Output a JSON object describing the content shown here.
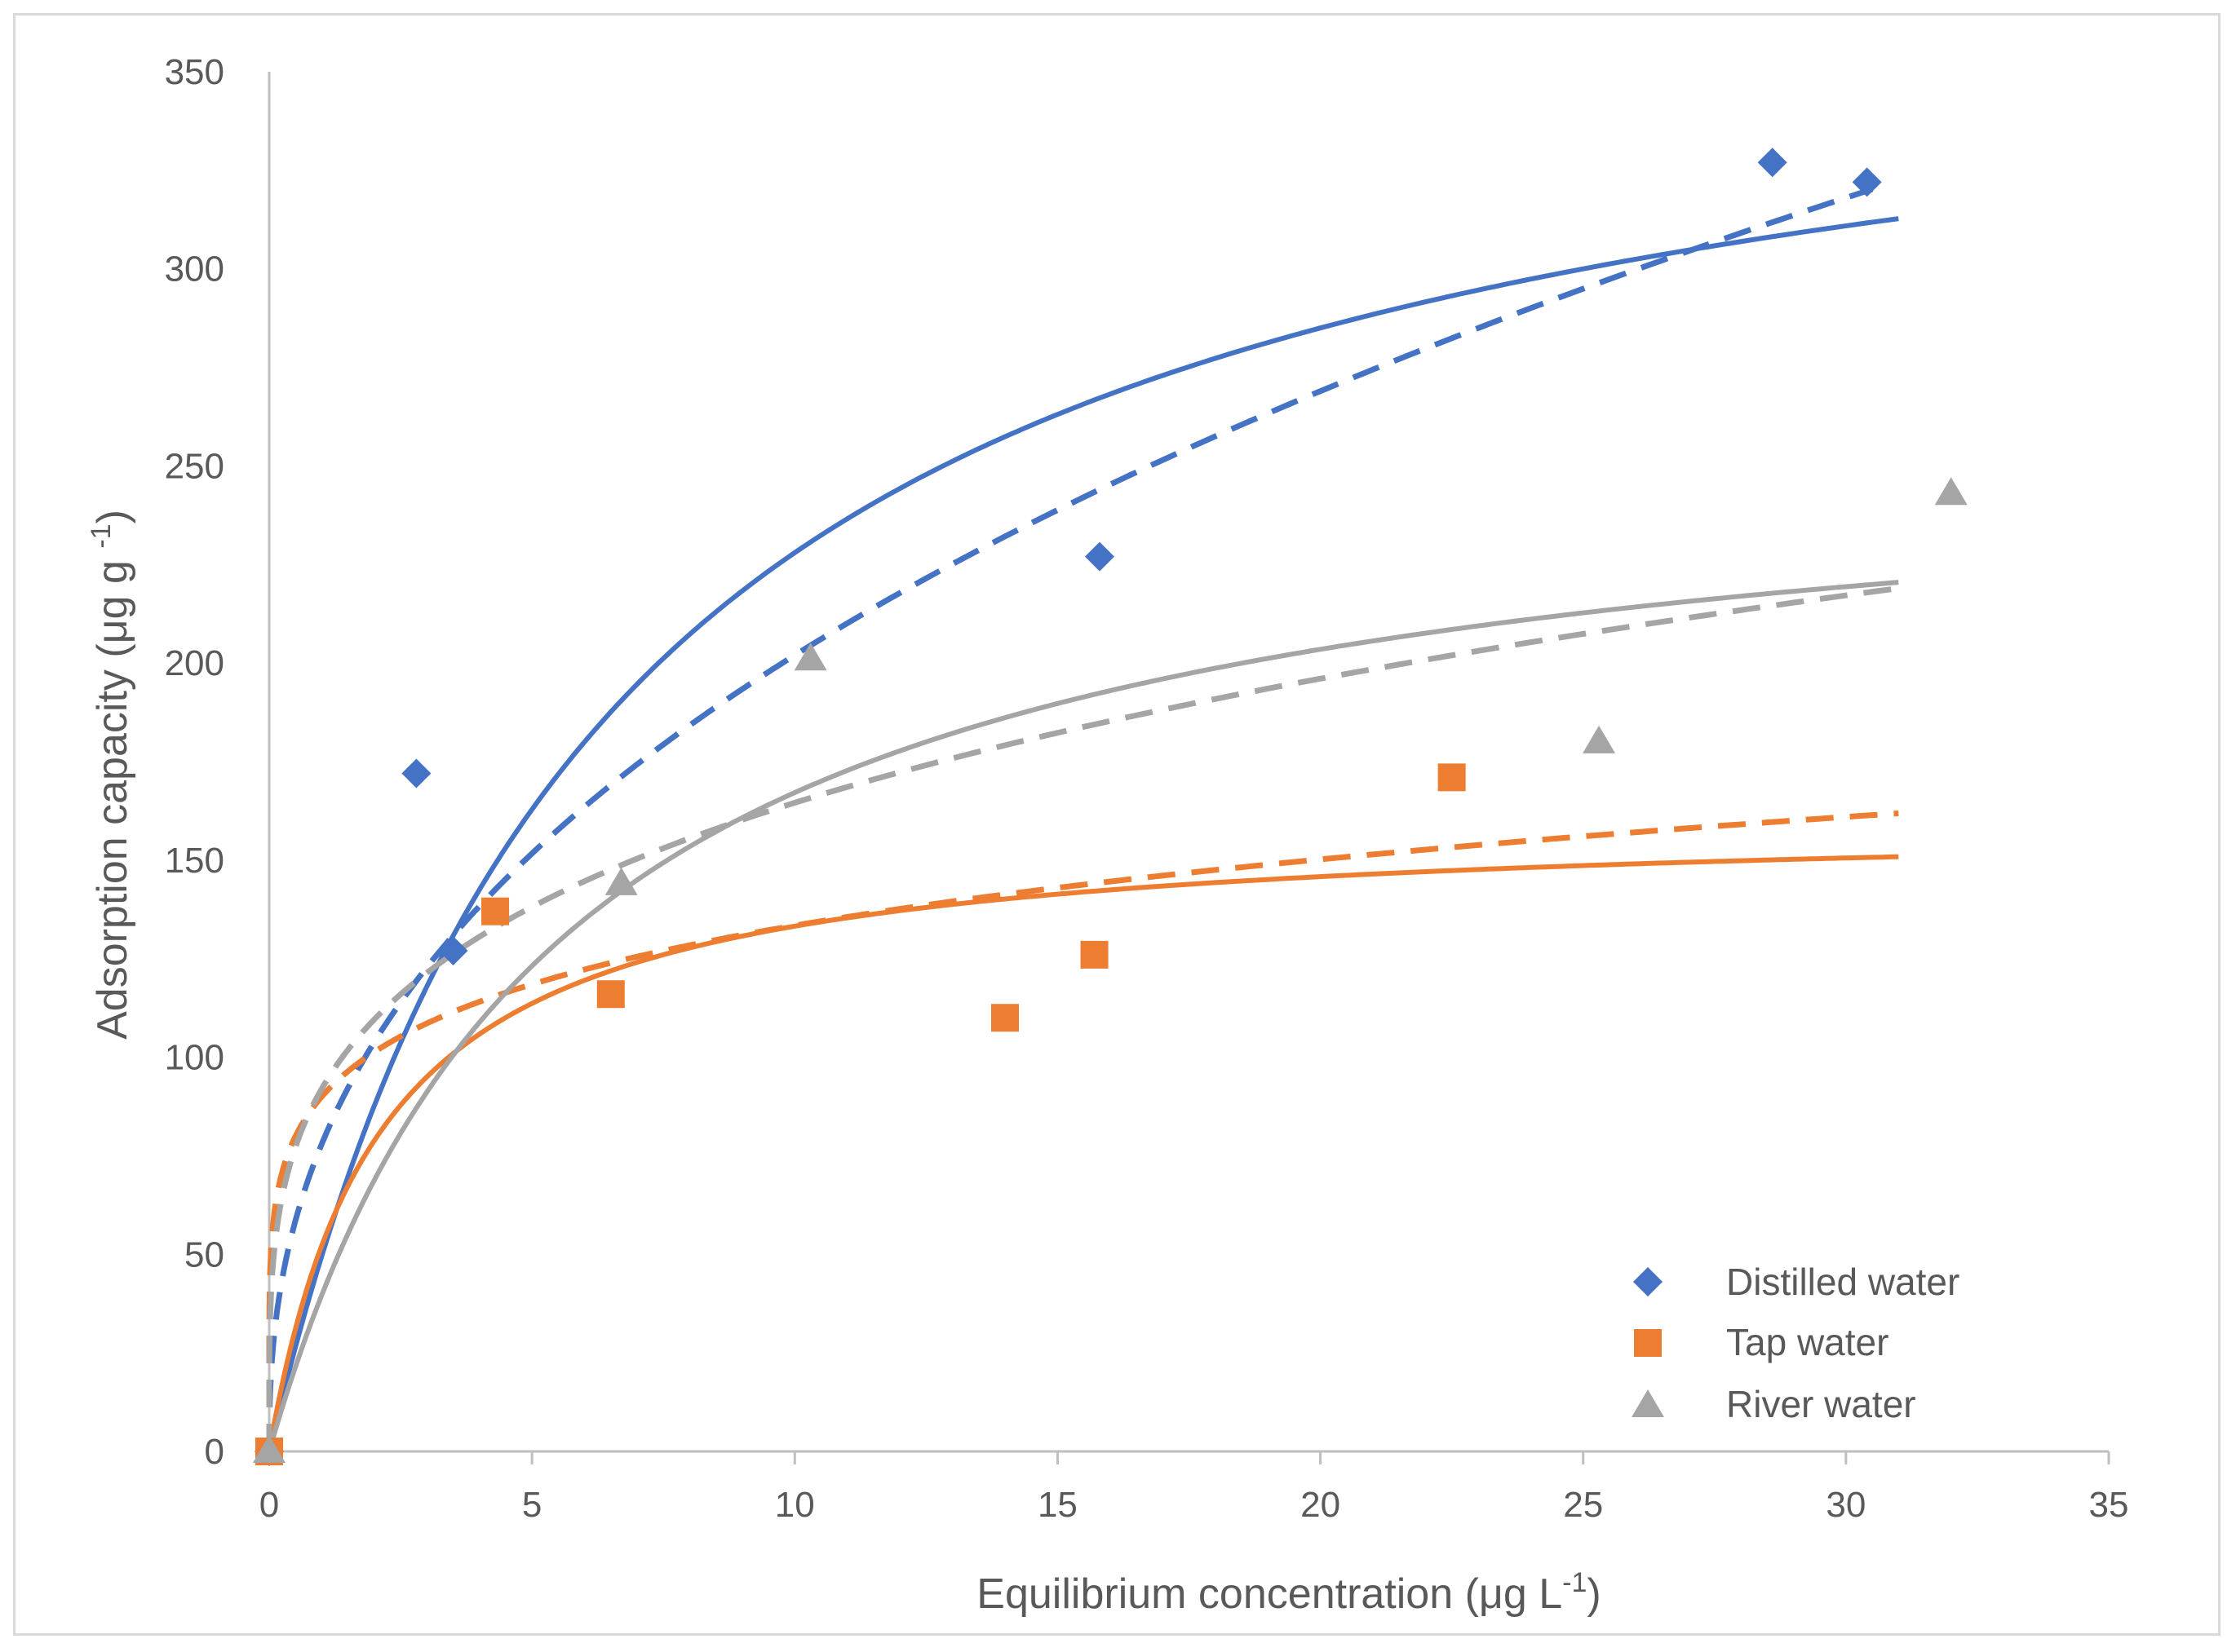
{
  "chart_data": {
    "type": "scatter",
    "title": "",
    "xlabel_main": "Equilibrium concentration (μg L",
    "xlabel_sup": "-1",
    "xlabel_end": ")",
    "ylabel_main": "Adsorption capacity (μg g ",
    "ylabel_sup": "-1",
    "ylabel_end": ")",
    "xlim": [
      0,
      35
    ],
    "ylim": [
      0,
      350
    ],
    "xticks": [
      0,
      5,
      10,
      15,
      20,
      25,
      30,
      35
    ],
    "yticks": [
      0,
      50,
      100,
      150,
      200,
      250,
      300,
      350
    ],
    "legend_position": "bottom-right",
    "series": [
      {
        "name": "Distilled water",
        "marker": "diamond",
        "color": "#4472C4",
        "points": [
          [
            0,
            0
          ],
          [
            2.8,
            172
          ],
          [
            3.5,
            127
          ],
          [
            15.8,
            227
          ],
          [
            28.6,
            327
          ],
          [
            30.4,
            322
          ]
        ],
        "fit_solid": {
          "model": "langmuir",
          "qmax": 380,
          "K": 0.15,
          "xmax": 31
        },
        "fit_dashed": {
          "model": "freundlich",
          "Kf": 78,
          "n": 2.42,
          "xmax": 30.5
        }
      },
      {
        "name": "Tap water",
        "marker": "square",
        "color": "#ED7D31",
        "points": [
          [
            0,
            0
          ],
          [
            4.3,
            137
          ],
          [
            6.5,
            116
          ],
          [
            14,
            110
          ],
          [
            15.7,
            126
          ],
          [
            22.5,
            171
          ]
        ],
        "fit_solid": {
          "model": "langmuir",
          "qmax": 161,
          "K": 0.48,
          "xmax": 31
        },
        "fit_dashed": {
          "model": "freundlich",
          "Kf": 90,
          "n": 5.85,
          "xmax": 31
        }
      },
      {
        "name": "River water",
        "marker": "triangle",
        "color": "#A5A5A5",
        "points": [
          [
            0,
            0
          ],
          [
            6.7,
            144
          ],
          [
            10.3,
            201
          ],
          [
            25.3,
            180
          ],
          [
            32,
            243
          ]
        ],
        "fit_solid": {
          "model": "langmuir",
          "qmax": 260,
          "K": 0.18,
          "xmax": 31
        },
        "fit_dashed": {
          "model": "freundlich",
          "Kf": 92,
          "n": 3.96,
          "xmax": 31
        }
      }
    ]
  }
}
